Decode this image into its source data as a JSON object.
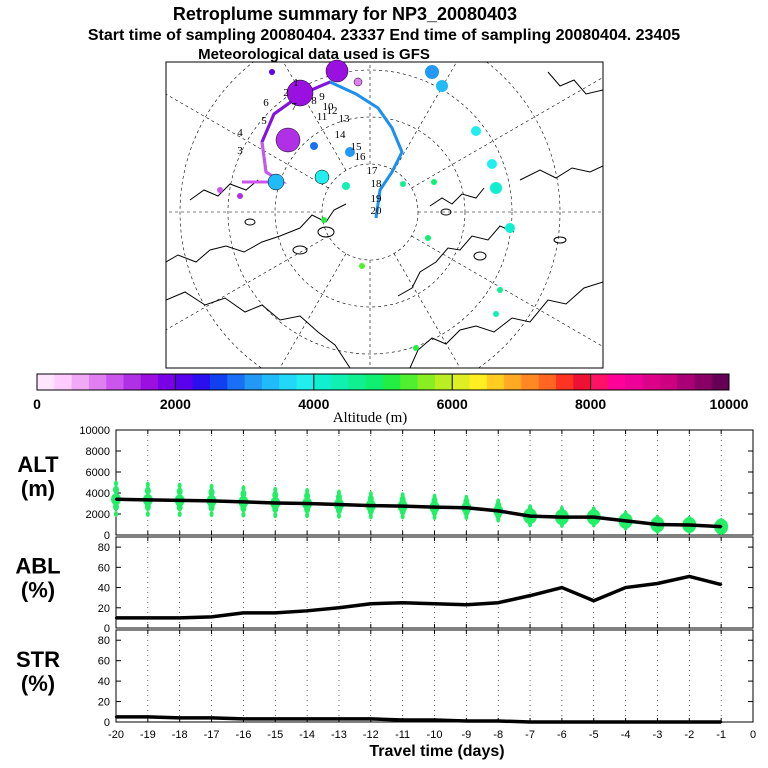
{
  "header": {
    "title": "Retroplume summary for NP3_20080403",
    "line2": "Start time of sampling 20080404. 23337     End time of sampling 20080404. 23405",
    "line3": "Meteorological data used is GFS"
  },
  "colorbar": {
    "ticks": [
      "0",
      "2000",
      "4000",
      "6000",
      "8000",
      "10000"
    ],
    "label": "Altitude (m)",
    "colors": [
      "#ffe6ff",
      "#ffccff",
      "#f0aaf5",
      "#e080f0",
      "#cc55ee",
      "#b030e6",
      "#9a10e0",
      "#7a00e6",
      "#5a00ee",
      "#2a10ee",
      "#1040f0",
      "#1a70f5",
      "#2299f5",
      "#20bbf8",
      "#22d8f8",
      "#22eef0",
      "#10f0d0",
      "#10f0b0",
      "#10f090",
      "#10f070",
      "#22ee44",
      "#50f030",
      "#88ee22",
      "#bbee22",
      "#ddee22",
      "#ffee22",
      "#ffcc22",
      "#ffaa22",
      "#ff8822",
      "#ff6622",
      "#ff3322",
      "#ee1133",
      "#ff1166",
      "#ff0099",
      "#ee0099",
      "#dd0088",
      "#cc0080",
      "#aa0077",
      "#880066",
      "#660055"
    ]
  },
  "map": {
    "trajectory_labels": [
      "1",
      "2",
      "3",
      "4",
      "5",
      "6",
      "7",
      "8",
      "9",
      "10",
      "11",
      "12",
      "13",
      "14",
      "15",
      "16",
      "17",
      "18",
      "19",
      "20"
    ]
  },
  "chart_data": [
    {
      "type": "line",
      "title": "ALT (m)",
      "ylabel": "ALT (m)",
      "x": [
        -20,
        -19,
        -18,
        -17,
        -16,
        -15,
        -14,
        -13,
        -12,
        -11,
        -10,
        -9,
        -8,
        -7,
        -6,
        -5,
        -4,
        -3,
        -2,
        -1
      ],
      "series": [
        {
          "name": "mean altitude",
          "values": [
            3400,
            3350,
            3300,
            3250,
            3150,
            3050,
            3000,
            2900,
            2800,
            2750,
            2650,
            2600,
            2300,
            1800,
            1700,
            1700,
            1350,
            1000,
            950,
            800
          ]
        }
      ],
      "scatter_color": "#22ee66",
      "ylim": [
        0,
        10000
      ],
      "yticks": [
        "10000",
        "8000",
        "6000",
        "4000",
        "2000",
        "0"
      ]
    },
    {
      "type": "line",
      "title": "ABL (%)",
      "ylabel": "ABL (%)",
      "x": [
        -20,
        -19,
        -18,
        -17,
        -16,
        -15,
        -14,
        -13,
        -12,
        -11,
        -10,
        -9,
        -8,
        -7,
        -6,
        -5,
        -4,
        -3,
        -2,
        -1
      ],
      "series": [
        {
          "name": "ABL fraction",
          "values": [
            10,
            10,
            10,
            11,
            15,
            15,
            17,
            20,
            24,
            25,
            24,
            23,
            25,
            32,
            40,
            27,
            40,
            44,
            51,
            43
          ]
        }
      ],
      "ylim": [
        0,
        90
      ],
      "yticks": [
        "80",
        "60",
        "40",
        "20",
        "0"
      ]
    },
    {
      "type": "line",
      "title": "STR (%)",
      "ylabel": "STR (%)",
      "x": [
        -20,
        -19,
        -18,
        -17,
        -16,
        -15,
        -14,
        -13,
        -12,
        -11,
        -10,
        -9,
        -8,
        -7,
        -6,
        -5,
        -4,
        -3,
        -2,
        -1
      ],
      "series": [
        {
          "name": "stratospheric fraction",
          "values": [
            5,
            5,
            4,
            4,
            3,
            3,
            3,
            3,
            3,
            2,
            2,
            1,
            1,
            0,
            0,
            0,
            0,
            0,
            0,
            0
          ]
        }
      ],
      "ylim": [
        0,
        90
      ],
      "yticks": [
        "80",
        "60",
        "40",
        "20",
        "0"
      ],
      "xlabel": "Travel time (days)",
      "xticks": [
        "-20",
        "-19",
        "-18",
        "-17",
        "-16",
        "-15",
        "-14",
        "-13",
        "-12",
        "-11",
        "-10",
        "-9",
        "-8",
        "-7",
        "-6",
        "-5",
        "-4",
        "-3",
        "-2",
        "-1",
        "0"
      ]
    }
  ]
}
